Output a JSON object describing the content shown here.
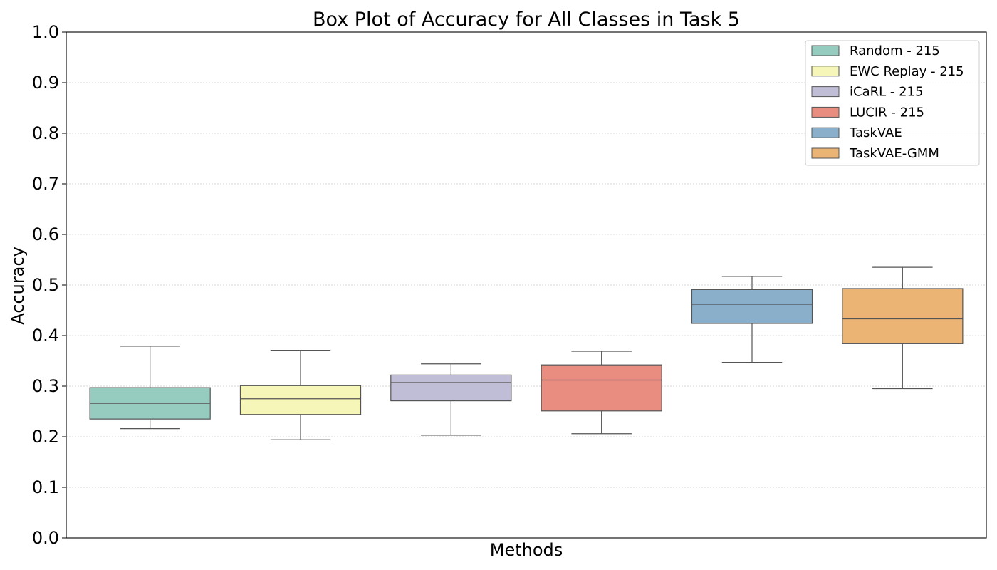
{
  "chart_data": {
    "type": "box",
    "title": "Box Plot of Accuracy for All Classes in Task 5",
    "xlabel": "Methods",
    "ylabel": "Accuracy",
    "ylim": [
      0.0,
      1.0
    ],
    "yticks": [
      "0.0",
      "0.1",
      "0.2",
      "0.3",
      "0.4",
      "0.5",
      "0.6",
      "0.7",
      "0.8",
      "0.9",
      "1.0"
    ],
    "grid": "horizontal dotted",
    "legend_position": "top-right",
    "series": [
      {
        "name": "Random - 215",
        "color": "#96cbc0",
        "whisker_low": 0.216,
        "q1": 0.235,
        "median": 0.266,
        "q3": 0.297,
        "whisker_high": 0.379
      },
      {
        "name": "EWC Replay - 215",
        "color": "#f7f6b9",
        "whisker_low": 0.194,
        "q1": 0.244,
        "median": 0.275,
        "q3": 0.301,
        "whisker_high": 0.371
      },
      {
        "name": "iCaRL - 215",
        "color": "#c0bdd7",
        "whisker_low": 0.203,
        "q1": 0.271,
        "median": 0.307,
        "q3": 0.322,
        "whisker_high": 0.344
      },
      {
        "name": "LUCIR - 215",
        "color": "#ea8d81",
        "whisker_low": 0.206,
        "q1": 0.251,
        "median": 0.312,
        "q3": 0.342,
        "whisker_high": 0.369
      },
      {
        "name": "TaskVAE",
        "color": "#89afcb",
        "whisker_low": 0.347,
        "q1": 0.424,
        "median": 0.462,
        "q3": 0.491,
        "whisker_high": 0.517
      },
      {
        "name": "TaskVAE-GMM",
        "color": "#ecb474",
        "whisker_low": 0.295,
        "q1": 0.384,
        "median": 0.433,
        "q3": 0.493,
        "whisker_high": 0.535
      }
    ]
  }
}
